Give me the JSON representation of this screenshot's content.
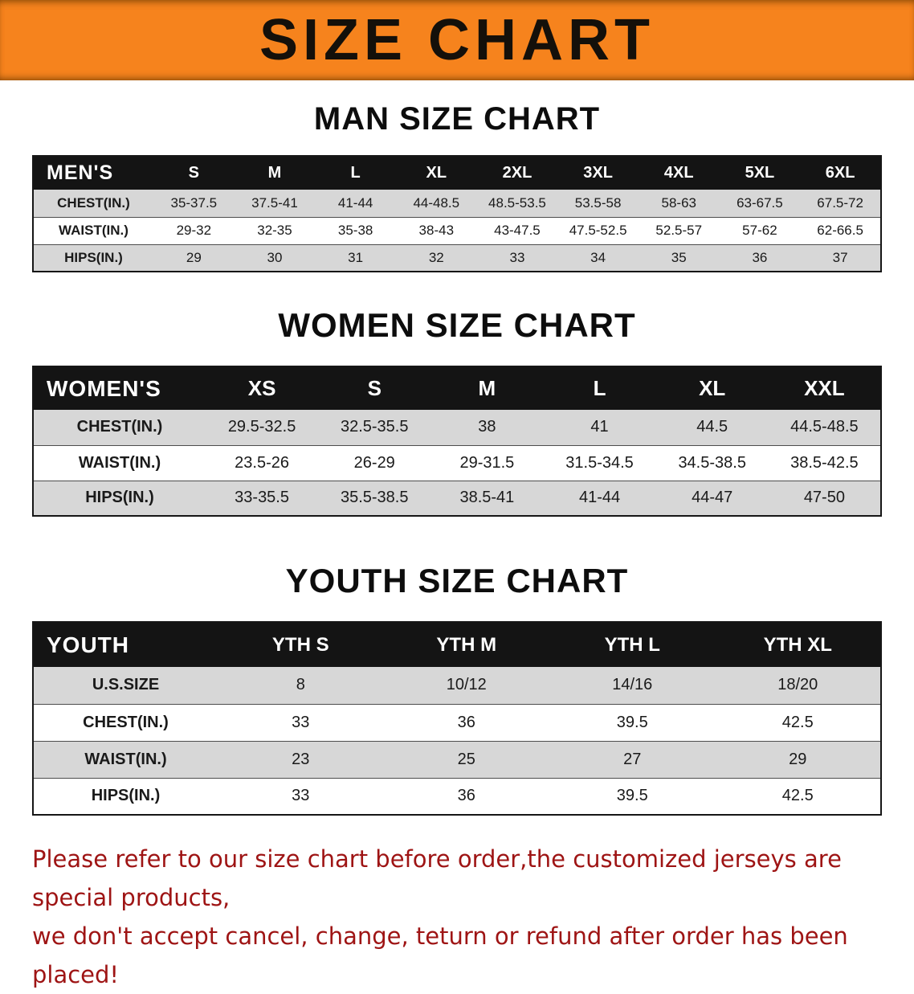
{
  "banner": {
    "title": "SIZE CHART"
  },
  "sections": [
    {
      "heading": "MAN SIZE CHART",
      "table": {
        "name": "mens",
        "header_label": "MEN'S",
        "columns": [
          "S",
          "M",
          "L",
          "XL",
          "2XL",
          "3XL",
          "4XL",
          "5XL",
          "6XL"
        ],
        "rows": [
          {
            "label": "CHEST(IN.)",
            "values": [
              "35-37.5",
              "37.5-41",
              "41-44",
              "44-48.5",
              "48.5-53.5",
              "53.5-58",
              "58-63",
              "63-67.5",
              "67.5-72"
            ]
          },
          {
            "label": "WAIST(IN.)",
            "values": [
              "29-32",
              "32-35",
              "35-38",
              "38-43",
              "43-47.5",
              "47.5-52.5",
              "52.5-57",
              "57-62",
              "62-66.5"
            ]
          },
          {
            "label": "HIPS(IN.)",
            "values": [
              "29",
              "30",
              "31",
              "32",
              "33",
              "34",
              "35",
              "36",
              "37"
            ]
          }
        ]
      }
    },
    {
      "heading": "WOMEN SIZE CHART",
      "table": {
        "name": "womens",
        "header_label": "WOMEN'S",
        "columns": [
          "XS",
          "S",
          "M",
          "L",
          "XL",
          "XXL"
        ],
        "rows": [
          {
            "label": "CHEST(IN.)",
            "values": [
              "29.5-32.5",
              "32.5-35.5",
              "38",
              "41",
              "44.5",
              "44.5-48.5"
            ]
          },
          {
            "label": "WAIST(IN.)",
            "values": [
              "23.5-26",
              "26-29",
              "29-31.5",
              "31.5-34.5",
              "34.5-38.5",
              "38.5-42.5"
            ]
          },
          {
            "label": "HIPS(IN.)",
            "values": [
              "33-35.5",
              "35.5-38.5",
              "38.5-41",
              "41-44",
              "44-47",
              "47-50"
            ]
          }
        ]
      }
    },
    {
      "heading": "YOUTH SIZE CHART",
      "table": {
        "name": "youth",
        "header_label": "YOUTH",
        "columns": [
          "YTH S",
          "YTH M",
          "YTH L",
          "YTH XL"
        ],
        "rows": [
          {
            "label": "U.S.SIZE",
            "values": [
              "8",
              "10/12",
              "14/16",
              "18/20"
            ]
          },
          {
            "label": "CHEST(IN.)",
            "values": [
              "33",
              "36",
              "39.5",
              "42.5"
            ]
          },
          {
            "label": "WAIST(IN.)",
            "values": [
              "23",
              "25",
              "27",
              "29"
            ]
          },
          {
            "label": "HIPS(IN.)",
            "values": [
              "33",
              "36",
              "39.5",
              "42.5"
            ]
          }
        ]
      }
    }
  ],
  "note": {
    "line1": "Please refer to our size chart before order,the customized jerseys are special products,",
    "line2": "we don't accept cancel, change, teturn or refund after order has been placed!"
  },
  "colors": {
    "banner_bg": "#f6831d",
    "header_bg": "#141414",
    "row_alt_bg": "#d7d7d7",
    "note_color": "#9e1414"
  }
}
